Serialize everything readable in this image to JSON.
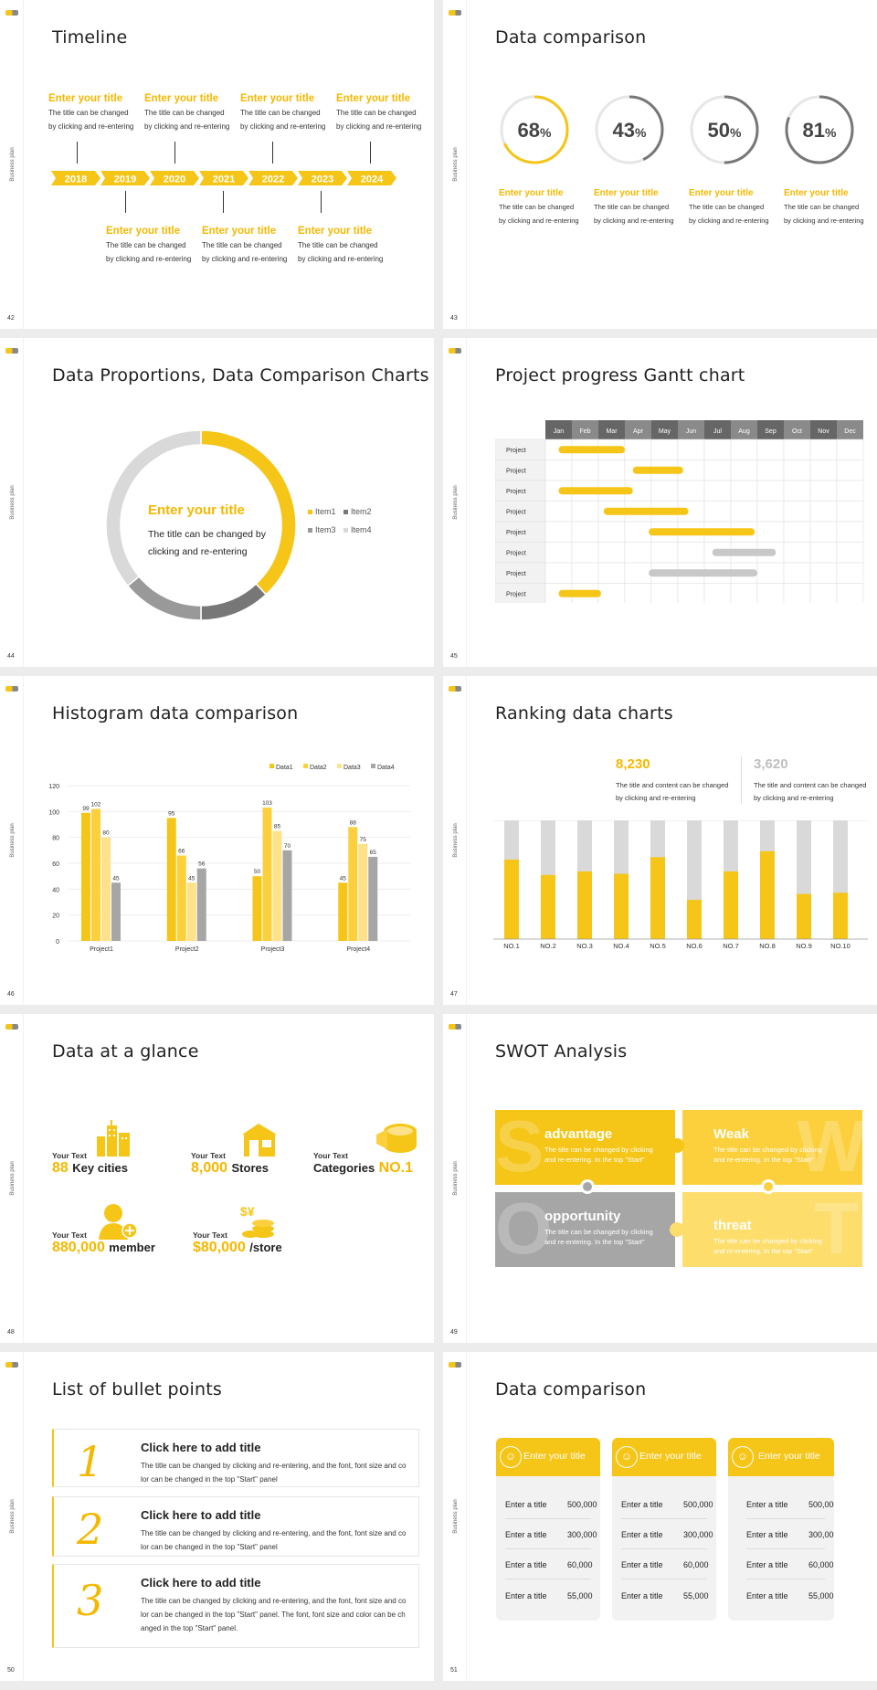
{
  "common": {
    "sidebar_text": "Business plan"
  },
  "slides": [
    {
      "num": "42",
      "title": "Timeline"
    },
    {
      "num": "43",
      "title": "Data comparison"
    },
    {
      "num": "44",
      "title": "Data Proportions, Data Comparison Charts"
    },
    {
      "num": "45",
      "title": "Project progress Gantt chart"
    },
    {
      "num": "46",
      "title": "Histogram data comparison"
    },
    {
      "num": "47",
      "title": "Ranking data charts"
    },
    {
      "num": "48",
      "title": "Data at a glance"
    },
    {
      "num": "49",
      "title": "SWOT Analysis"
    },
    {
      "num": "50",
      "title": "List of bullet points"
    },
    {
      "num": "51",
      "title": "Data comparison"
    }
  ],
  "timeline": {
    "years": [
      "2018",
      "2019",
      "2020",
      "2021",
      "2022",
      "2023",
      "2024"
    ],
    "top_items": [
      {
        "title": "Enter your title",
        "line1": "The title can be changed",
        "line2": "by clicking and re-entering"
      },
      {
        "title": "Enter your title",
        "line1": "The title can be changed",
        "line2": "by clicking and re-entering"
      },
      {
        "title": "Enter your title",
        "line1": "The title can be changed",
        "line2": "by clicking and re-entering"
      },
      {
        "title": "Enter your title",
        "line1": "The title can be changed",
        "line2": "by clicking and re-entering"
      }
    ],
    "bottom_items": [
      {
        "title": "Enter your title",
        "line1": "The title can be changed",
        "line2": "by clicking and re-entering"
      },
      {
        "title": "Enter your title",
        "line1": "The title can be changed",
        "line2": "by clicking and re-entering"
      },
      {
        "title": "Enter your title",
        "line1": "The title can be changed",
        "line2": "by clicking and re-entering"
      }
    ]
  },
  "rings": {
    "items": [
      {
        "value": 68,
        "label": "Enter your title",
        "line1": "The title can be changed",
        "line2": "by clicking and re-entering"
      },
      {
        "value": 43,
        "label": "Enter your title",
        "line1": "The title can be changed",
        "line2": "by clicking and re-entering"
      },
      {
        "value": 50,
        "label": "Enter your title",
        "line1": "The title can be changed",
        "line2": "by clicking and re-entering"
      },
      {
        "value": 81,
        "label": "Enter your title",
        "line1": "The title can be changed",
        "line2": "by clicking and re-entering"
      }
    ],
    "unit": "%"
  },
  "donut": {
    "center_title": "Enter your title",
    "center_line1": "The title can be changed by",
    "center_line2": "clicking and re-entering",
    "legend": [
      "Item1",
      "Item2",
      "Item3",
      "Item4"
    ]
  },
  "gantt": {
    "months": [
      "Jan",
      "Feb",
      "Mar",
      "Apr",
      "May",
      "Jun",
      "Jul",
      "Aug",
      "Sep",
      "Oct",
      "Nov",
      "Dec"
    ],
    "row_label": "Project",
    "rows": [
      {
        "start": 0.5,
        "end": 3.0,
        "color": "yellow"
      },
      {
        "start": 3.3,
        "end": 5.2,
        "color": "yellow"
      },
      {
        "start": 0.5,
        "end": 3.3,
        "color": "yellow"
      },
      {
        "start": 2.2,
        "end": 5.4,
        "color": "yellow"
      },
      {
        "start": 3.9,
        "end": 7.9,
        "color": "yellow"
      },
      {
        "start": 6.3,
        "end": 8.7,
        "color": "gray"
      },
      {
        "start": 3.9,
        "end": 8.0,
        "color": "gray"
      },
      {
        "start": 0.5,
        "end": 2.1,
        "color": "yellow"
      }
    ],
    "colors": {
      "yellow": "#f5c518",
      "gray": "#c8c8c8"
    }
  },
  "chart_data": [
    {
      "type": "pie",
      "categories": [
        "Item1",
        "Item2",
        "Item3",
        "Item4"
      ],
      "values": [
        38,
        12,
        14,
        36
      ],
      "legend_position": "right",
      "colors": [
        "#f5c518",
        "#777777",
        "#999999",
        "#d9d9d9"
      ]
    },
    {
      "type": "bar",
      "categories": [
        "Project1",
        "Project2",
        "Project3",
        "Project4"
      ],
      "series": [
        {
          "name": "Data1",
          "values": [
            99,
            95,
            50,
            45
          ]
        },
        {
          "name": "Data2",
          "values": [
            102,
            66,
            103,
            88
          ]
        },
        {
          "name": "Data3",
          "values": [
            80,
            45,
            85,
            75
          ]
        },
        {
          "name": "Data4",
          "values": [
            45,
            56,
            70,
            65
          ]
        }
      ],
      "ylim": [
        0,
        120
      ],
      "yticks": [
        0,
        20,
        40,
        60,
        80,
        100,
        120
      ],
      "grid": true,
      "legend_position": "top-right",
      "colors": [
        "#f5c518",
        "#fcd03d",
        "#fde28a",
        "#a6a6a6"
      ]
    },
    {
      "type": "bar",
      "categories": [
        "NO.1",
        "NO.2",
        "NO.3",
        "NO.4",
        "NO.5",
        "NO.6",
        "NO.7",
        "NO.8",
        "NO.9",
        "NO.10"
      ],
      "values": [
        0.67,
        0.54,
        0.57,
        0.55,
        0.69,
        0.33,
        0.57,
        0.74,
        0.38,
        0.39
      ],
      "ylim": [
        0,
        1
      ],
      "stacked_background": true,
      "colors": [
        "#f5c518",
        "#d9d9d9"
      ]
    }
  ],
  "ranking": {
    "stat1": {
      "value": "8,230",
      "line1": "The title and content can be changed",
      "line2": "by clicking and re-entering"
    },
    "stat2": {
      "value": "3,620",
      "line1": "The title and content can be changed",
      "line2": "by clicking and re-entering"
    }
  },
  "glance": {
    "items": [
      {
        "small": "Your Text",
        "big": "88",
        "rest": "Key cities",
        "icon": "city-icon"
      },
      {
        "small": "Your Text",
        "big": "8,000",
        "rest": "Stores",
        "icon": "store-icon"
      },
      {
        "small": "Your Text",
        "pre": "Categories",
        "big": "NO.1",
        "icon": "cheese-icon"
      },
      {
        "small": "Your Text",
        "big": "880,000",
        "rest": "member",
        "icon": "member-icon"
      },
      {
        "small": "Your Text",
        "big": "$80,000",
        "rest": "/store",
        "icon": "coins-icon"
      }
    ]
  },
  "swot": {
    "desc_line1": "The title can be changed by clicking",
    "desc_line2": "and re-entering. In the top \"Start\"",
    "cells": [
      {
        "letter": "S",
        "title": "advantage",
        "color": "#f5c518"
      },
      {
        "letter": "W",
        "title": "Weak",
        "color": "#fcd03d"
      },
      {
        "letter": "O",
        "title": "opportunity",
        "color": "#a6a6a6"
      },
      {
        "letter": "T",
        "title": "threat",
        "color": "#fddd6b"
      }
    ]
  },
  "bullets": {
    "items": [
      {
        "num": "1",
        "title": "Click here to add title",
        "line1": "The title can be changed by clicking and re-entering, and the font, font size and co",
        "line2": "lor can be changed in the top \"Start\" panel"
      },
      {
        "num": "2",
        "title": "Click here to add title",
        "line1": "The title can be changed by clicking and re-entering, and the font, font size and co",
        "line2": "lor can be changed in the top \"Start\" panel"
      },
      {
        "num": "3",
        "title": "Click here to add title",
        "line1": "The title can be changed by clicking and re-entering, and the font, font size and co",
        "line2": "lor can be changed in the top \"Start\" panel. The font, font size and color can be ch",
        "line3": "anged in the top \"Start\" panel."
      }
    ]
  },
  "cards": {
    "items": [
      {
        "title": "Enter your title",
        "icon": "person-icon",
        "rows": [
          [
            "Enter a title",
            "500,000"
          ],
          [
            "Enter a title",
            "300,000"
          ],
          [
            "Enter a title",
            "60,000"
          ],
          [
            "Enter a title",
            "55,000"
          ]
        ]
      },
      {
        "title": "Enter your title",
        "icon": "person-icon",
        "rows": [
          [
            "Enter a title",
            "500,000"
          ],
          [
            "Enter a title",
            "300,000"
          ],
          [
            "Enter a title",
            "60,000"
          ],
          [
            "Enter a title",
            "55,000"
          ]
        ]
      },
      {
        "title": "Enter your title",
        "icon": "group-icon",
        "rows": [
          [
            "Enter a title",
            "500,000"
          ],
          [
            "Enter a title",
            "300,000"
          ],
          [
            "Enter a title",
            "60,000"
          ],
          [
            "Enter a title",
            "55,000"
          ]
        ]
      }
    ]
  }
}
